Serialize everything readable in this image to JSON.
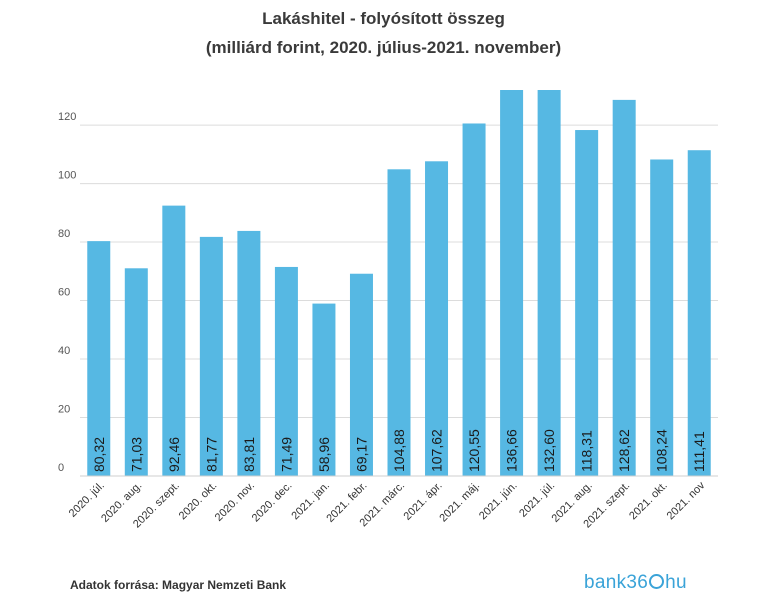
{
  "header": {
    "title_line1": "Lakáshitel - folyósított összeg",
    "title_line2": "(milliárd forint, 2020. július-2021. november)"
  },
  "chart_data": {
    "type": "bar",
    "title": "Lakáshitel - folyósított összeg (milliárd forint, 2020. július-2021. november)",
    "xlabel": "",
    "ylabel": "",
    "ylim": [
      0,
      132
    ],
    "yticks": [
      0,
      20,
      40,
      60,
      80,
      100,
      120
    ],
    "grid": true,
    "bar_color": "#56b8e3",
    "categories": [
      "2020. júl.",
      "2020. aug.",
      "2020. szept.",
      "2020. okt.",
      "2020. nov.",
      "2020. dec.",
      "2021. jan.",
      "2021. febr.",
      "2021. márc.",
      "2021. ápr.",
      "2021. máj.",
      "2021. jún.",
      "2021. júl.",
      "2021. aug.",
      "2021. szept.",
      "2021. okt.",
      "2021. nov"
    ],
    "values": [
      80.32,
      71.03,
      92.46,
      81.77,
      83.81,
      71.49,
      58.96,
      69.17,
      104.88,
      107.62,
      120.55,
      136.66,
      132.6,
      118.31,
      128.62,
      108.24,
      111.41
    ],
    "value_labels": [
      "80,32",
      "71,03",
      "92,46",
      "81,77",
      "83,81",
      "71,49",
      "58,96",
      "69,17",
      "104,88",
      "107,62",
      "120,55",
      "136,66",
      "132,60",
      "118,31",
      "128,62",
      "108,24",
      "111,41"
    ]
  },
  "footer": {
    "source": "Adatok forrása: Magyar Nemzeti Bank",
    "logo_prefix": "bank36",
    "logo_suffix": "hu"
  }
}
